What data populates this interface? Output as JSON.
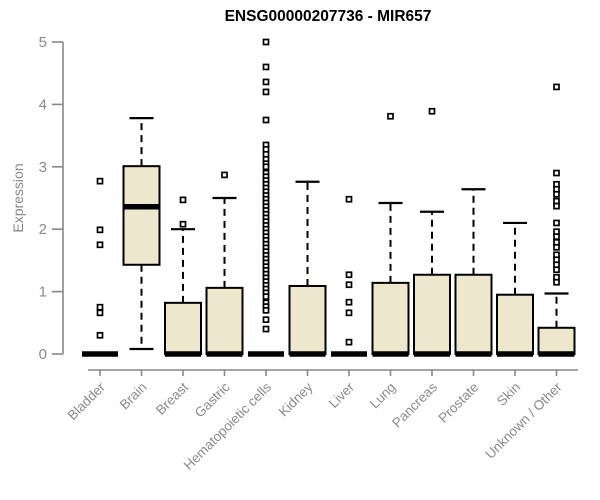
{
  "title": "ENSG00000207736 - MIR657",
  "y_axis": {
    "label": "Expression",
    "ticks": [
      "0",
      "1",
      "2",
      "3",
      "4",
      "5"
    ]
  },
  "colors": {
    "background": "#ffffff",
    "box_fill": "#ede7cd",
    "box_border": "#000000",
    "median": "#000000",
    "whisker": "#000000",
    "outlier": "#000000",
    "axis": "#878787",
    "tick_label": "#8a8a8a",
    "title": "#000000"
  },
  "chart_data": {
    "type": "boxplot",
    "title": "ENSG00000207736 - MIR657",
    "ylabel": "Expression",
    "xlabel": "",
    "ylim": [
      0,
      5
    ],
    "yticks": [
      0,
      1,
      2,
      3,
      4,
      5
    ],
    "grid": false,
    "legend": "none",
    "categories": [
      "Bladder",
      "Brain",
      "Breast",
      "Gastric",
      "Hematopoietic cells",
      "Kidney",
      "Liver",
      "Lung",
      "Pancreas",
      "Prostate",
      "Skin",
      "Unknown / Other"
    ],
    "series": [
      {
        "category": "Bladder",
        "q1": 0,
        "median": 0,
        "q3": 0,
        "whisker_low": 0,
        "whisker_high": 0,
        "outliers": [
          2.77,
          1.99,
          1.75,
          0.75,
          0.66,
          0.3
        ]
      },
      {
        "category": "Brain",
        "q1": 1.43,
        "median": 2.36,
        "q3": 3.01,
        "whisker_low": 0.08,
        "whisker_high": 3.78,
        "outliers": []
      },
      {
        "category": "Breast",
        "q1": 0,
        "median": 0,
        "q3": 0.82,
        "whisker_low": 0,
        "whisker_high": 2.0,
        "outliers": [
          2.47,
          2.08
        ]
      },
      {
        "category": "Gastric",
        "q1": 0,
        "median": 0,
        "q3": 1.06,
        "whisker_low": 0,
        "whisker_high": 2.5,
        "outliers": [
          2.87
        ]
      },
      {
        "category": "Hematopoietic cells",
        "q1": 0,
        "median": 0,
        "q3": 0,
        "whisker_low": 0,
        "whisker_high": 0,
        "outliers": [
          5.0,
          4.6,
          4.36,
          4.2,
          3.75,
          3.35,
          3.28,
          3.2,
          3.12,
          3.05,
          3.0,
          2.9,
          2.84,
          2.78,
          2.72,
          2.66,
          2.6,
          2.54,
          2.48,
          2.42,
          2.36,
          2.3,
          2.24,
          2.18,
          2.12,
          2.06,
          2.0,
          1.94,
          1.88,
          1.82,
          1.76,
          1.7,
          1.64,
          1.58,
          1.52,
          1.46,
          1.4,
          1.34,
          1.28,
          1.22,
          1.16,
          1.1,
          1.04,
          0.98,
          0.92,
          0.82,
          0.76,
          0.7,
          0.55,
          0.4
        ]
      },
      {
        "category": "Kidney",
        "q1": 0,
        "median": 0,
        "q3": 1.09,
        "whisker_low": 0,
        "whisker_high": 2.76,
        "outliers": []
      },
      {
        "category": "Liver",
        "q1": 0,
        "median": 0,
        "q3": 0,
        "whisker_low": 0,
        "whisker_high": 0,
        "outliers": [
          2.48,
          1.27,
          1.11,
          0.83,
          0.66,
          0.19
        ]
      },
      {
        "category": "Lung",
        "q1": 0,
        "median": 0,
        "q3": 1.14,
        "whisker_low": 0,
        "whisker_high": 2.42,
        "outliers": [
          3.81
        ]
      },
      {
        "category": "Pancreas",
        "q1": 0,
        "median": 0,
        "q3": 1.27,
        "whisker_low": 0,
        "whisker_high": 2.28,
        "outliers": [
          3.89
        ]
      },
      {
        "category": "Prostate",
        "q1": 0,
        "median": 0,
        "q3": 1.27,
        "whisker_low": 0,
        "whisker_high": 2.64,
        "outliers": []
      },
      {
        "category": "Skin",
        "q1": 0,
        "median": 0,
        "q3": 0.95,
        "whisker_low": 0,
        "whisker_high": 2.1,
        "outliers": []
      },
      {
        "category": "Unknown / Other",
        "q1": 0,
        "median": 0,
        "q3": 0.42,
        "whisker_low": 0,
        "whisker_high": 0.97,
        "outliers": [
          4.28,
          2.9,
          2.72,
          2.64,
          2.56,
          2.45,
          2.37,
          2.1,
          1.96,
          1.88,
          1.79,
          1.71,
          1.59,
          1.51,
          1.43,
          1.35,
          1.23,
          1.15
        ]
      }
    ]
  }
}
